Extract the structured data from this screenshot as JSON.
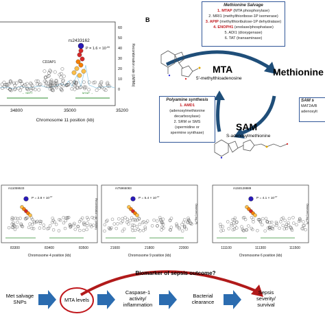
{
  "panel_b": {
    "label": "B",
    "met_salvage": {
      "title": "Methionine Salvage",
      "items": [
        {
          "gene": "1. MTAP",
          "rest": " (MTA phosphorylase)",
          "highlight": true
        },
        {
          "gene": "2. MRI1",
          "rest": " (methylthioribose-1P isomerase)",
          "highlight": false
        },
        {
          "gene": "3. APIP",
          "rest": " (methylthioribulose-1P dehydratase)",
          "highlight": true
        },
        {
          "gene": "4. ENOPH1",
          "rest": " (enolase/phosphatase)",
          "highlight": true
        },
        {
          "gene": "5. ADI1",
          "rest": " (dioxygenase)",
          "highlight": false
        },
        {
          "gene": "6. TAT",
          "rest": " (transaminase)",
          "highlight": false
        }
      ]
    },
    "mta_label": "MTA",
    "mta_full": "5'-methylthioadenosine",
    "methionine_label": "Methionine",
    "sam_label": "SAM",
    "sam_full": "S-adenosylmethionine",
    "polyamine": {
      "title": "Polyamine synthesis",
      "lines": [
        "1. AMD1",
        "(adenosylmethionine",
        "decarboxylase)",
        "2. SRM or SMS",
        "(spermidine or",
        "spermine synthase)"
      ]
    },
    "sam_synth": {
      "title": "SAM s",
      "lines": [
        "MAT2A/B",
        "adenosylt"
      ]
    }
  },
  "top_plot": {
    "snp": "rs2433162",
    "pvalue": "P = 1.6 × 10",
    "pexp": "-09",
    "xlabel": "Chromosome 11 position (kb)",
    "ylabel": "Recombination rate (cM/Mb)",
    "xticks": [
      "34800",
      "35000",
      "35200"
    ],
    "yticks": [
      "0",
      "10",
      "20",
      "30",
      "40",
      "50",
      "60"
    ],
    "gene_label": "CD2AP1"
  },
  "small_plots": [
    {
      "snp": "rs11059533",
      "pvalue": "P = 2.8 × 10",
      "pexp": "-07",
      "xlabel": "Chromosome 4 position (kb)",
      "xticks": [
        "83300",
        "83400",
        "83500"
      ],
      "ylabel": "Recombination rate (cM/Mb)"
    },
    {
      "snp": "rs75965083",
      "pvalue": "P = 5.4 × 10",
      "pexp": "-07",
      "xlabel": "Chromosome 9 position (kb)",
      "xticks": [
        "21600",
        "21800",
        "22000"
      ],
      "ylabel": "Observed (-log₁₀P)"
    },
    {
      "snp": "rs150128889",
      "pvalue": "P = 4.1 × 10",
      "pexp": "-07",
      "xlabel": "Chromosome 6 position (kb)",
      "xticks": [
        "111100",
        "111300",
        "111500"
      ],
      "ylabel": "Observed (-log₁₀P)"
    }
  ],
  "flow": {
    "question": "Biomarker of sepsis outcome?",
    "steps": [
      [
        "Met salvage",
        "SNPs"
      ],
      [
        "MTA levels"
      ],
      [
        "Caspase-1",
        "activity/",
        "inflammation"
      ],
      [
        "Bacterial",
        "clearance"
      ],
      [
        "Sepsis",
        "severity/",
        "survival"
      ]
    ]
  },
  "colors": {
    "red": "#c0171c",
    "arrow": "#1f4e79",
    "box_border": "#2f5597",
    "purple": "#1a1aa6"
  }
}
